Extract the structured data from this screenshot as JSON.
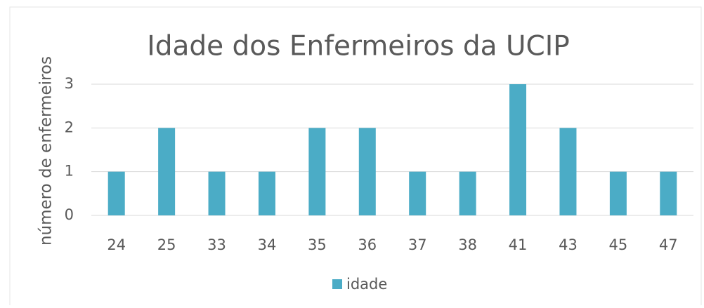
{
  "chart_data": {
    "type": "bar",
    "title": "Idade dos Enfermeiros da UCIP",
    "y_label": "número de enfermeiros",
    "categories": [
      "24",
      "25",
      "33",
      "34",
      "35",
      "36",
      "37",
      "38",
      "41",
      "43",
      "45",
      "47"
    ],
    "series": [
      {
        "name": "idade",
        "color": "#4bacc6",
        "values": [
          1,
          2,
          1,
          1,
          2,
          2,
          1,
          1,
          3,
          2,
          1,
          1
        ]
      }
    ],
    "ylim": [
      0,
      3
    ],
    "yticks": [
      0,
      1,
      2,
      3
    ],
    "grid": true,
    "legend": "bottom"
  }
}
